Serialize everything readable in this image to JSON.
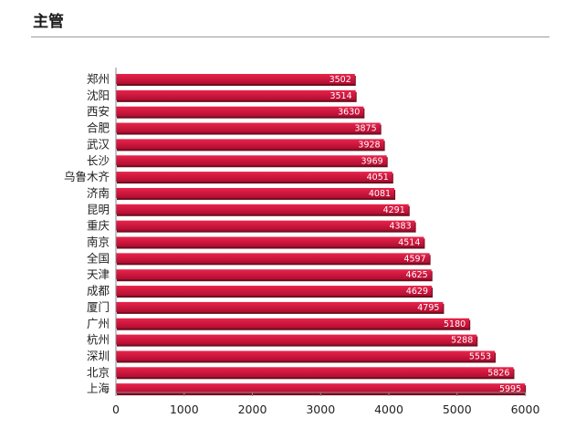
{
  "header": {
    "title": "主管"
  },
  "chart_data": {
    "type": "bar",
    "orientation": "horizontal",
    "title": "",
    "xlabel": "",
    "ylabel": "",
    "categories": [
      "郑州",
      "沈阳",
      "西安",
      "合肥",
      "武汉",
      "长沙",
      "乌鲁木齐",
      "济南",
      "昆明",
      "重庆",
      "南京",
      "全国",
      "天津",
      "成都",
      "厦门",
      "广州",
      "杭州",
      "深圳",
      "北京",
      "上海"
    ],
    "values": [
      3502,
      3514,
      3630,
      3875,
      3928,
      3969,
      4051,
      4081,
      4291,
      4383,
      4514,
      4597,
      4625,
      4629,
      4795,
      5180,
      5288,
      5553,
      5826,
      5995
    ],
    "xlim": [
      0,
      6000
    ],
    "xticks": [
      0,
      1000,
      2000,
      3000,
      4000,
      5000,
      6000
    ],
    "grid": false,
    "legend": "none",
    "colors": {
      "bar_top": "#e8244a",
      "bar_bottom": "#b20c32",
      "bar_shadow": "#6e0e1d"
    }
  }
}
